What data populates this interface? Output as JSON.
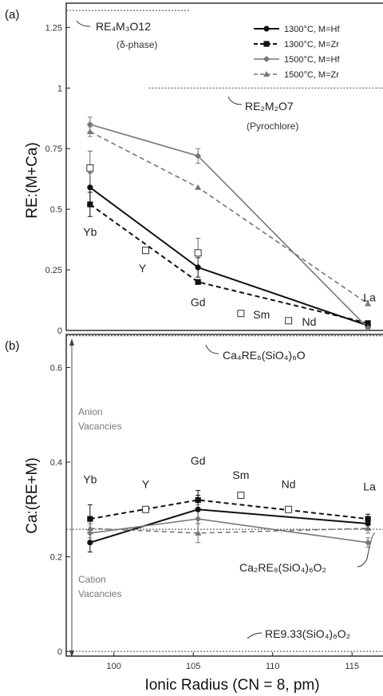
{
  "chart_data": [
    {
      "panel": "(a)",
      "type": "line",
      "ylabel": "RE:(M+Ca)",
      "xlim": [
        97,
        117
      ],
      "ylim": [
        0,
        1.35
      ],
      "yticks": [
        0,
        0.25,
        0.5,
        0.75,
        1,
        1.25
      ],
      "ytick_labels": [
        "0",
        "0.25",
        "0.5",
        "0.75",
        "1",
        "1.25"
      ],
      "series": [
        {
          "name": "1300°C, M=Hf",
          "style": "solid",
          "marker": "circle",
          "color": "#111111",
          "x": [
            98.5,
            105.3,
            116
          ],
          "y": [
            0.59,
            0.26,
            0.02
          ],
          "err": [
            0.06,
            0.04,
            0.02
          ]
        },
        {
          "name": "1300°C, M=Zr",
          "style": "dashed",
          "marker": "square",
          "color": "#111111",
          "x": [
            98.5,
            105.3,
            116
          ],
          "y": [
            0.52,
            0.2,
            0.03
          ],
          "err": [
            0.05,
            0.0,
            0.0
          ]
        },
        {
          "name": "1500°C, M=Hf",
          "style": "solid",
          "marker": "diamond",
          "color": "#777777",
          "x": [
            98.5,
            105.3,
            116
          ],
          "y": [
            0.85,
            0.72,
            0.01
          ],
          "err": [
            0.03,
            0.03,
            0.0
          ]
        },
        {
          "name": "1500°C, M=Zr",
          "style": "dashed",
          "marker": "triangle",
          "color": "#777777",
          "x": [
            98.5,
            105.3,
            116
          ],
          "y": [
            0.82,
            0.59,
            0.11
          ],
          "err": [
            0.02,
            0.0,
            0.0
          ]
        }
      ],
      "open_squares": [
        {
          "x": 98.5,
          "y": 0.67,
          "err": 0.07
        },
        {
          "x": 102,
          "y": 0.33,
          "err": 0
        },
        {
          "x": 105.3,
          "y": 0.32,
          "err": 0.06
        },
        {
          "x": 108,
          "y": 0.07,
          "err": 0
        },
        {
          "x": 111,
          "y": 0.04,
          "err": 0
        }
      ],
      "element_labels": [
        {
          "text": "Yb",
          "x": 98.5,
          "y": 0.39
        },
        {
          "text": "Y",
          "x": 101.8,
          "y": 0.24
        },
        {
          "text": "Gd",
          "x": 105.3,
          "y": 0.1
        },
        {
          "text": "Sm",
          "x": 109.3,
          "y": 0.05
        },
        {
          "text": "Nd",
          "x": 112.3,
          "y": 0.02
        },
        {
          "text": "La",
          "x": 116.1,
          "y": 0.12
        }
      ],
      "reference_lines": [
        {
          "y": 1.32,
          "x_from": 97,
          "x_to": 104.8
        },
        {
          "y": 1.0,
          "x_from": 102.2,
          "x_to": 117
        }
      ],
      "phase_label_1_formula": "RE₄M₃O12",
      "phase_label_1_name": "(δ-phase)",
      "phase_label_2_formula": "RE₂M₂O7",
      "phase_label_2_name": "(Pyrochlore)"
    },
    {
      "panel": "(b)",
      "type": "line",
      "ylabel": "Ca:(RE+M)",
      "xlabel": "Ionic Radius (CN = 8, pm)",
      "xlim": [
        97,
        117
      ],
      "ylim": [
        -0.01,
        0.67
      ],
      "xticks": [
        100,
        105,
        110,
        115
      ],
      "xtick_labels": [
        "100",
        "105",
        "110",
        "115"
      ],
      "yticks": [
        0,
        0.2,
        0.4,
        0.6
      ],
      "ytick_labels": [
        "0",
        "0.2",
        "0.4",
        "0.6"
      ],
      "series": [
        {
          "name": "1300°C, M=Hf",
          "style": "solid",
          "marker": "circle",
          "color": "#111111",
          "x": [
            98.5,
            105.3,
            116
          ],
          "y": [
            0.23,
            0.3,
            0.27
          ],
          "err": [
            0.02,
            0.03,
            0.01
          ]
        },
        {
          "name": "1300°C, M=Zr",
          "style": "dashed",
          "marker": "square",
          "color": "#111111",
          "x": [
            98.5,
            105.3,
            116
          ],
          "y": [
            0.28,
            0.32,
            0.28
          ],
          "err": [
            0.03,
            0.02,
            0.01
          ]
        },
        {
          "name": "1500°C, M=Hf",
          "style": "solid",
          "marker": "diamond",
          "color": "#777777",
          "x": [
            98.5,
            105.3,
            116
          ],
          "y": [
            0.25,
            0.28,
            0.23
          ],
          "err": [
            0.02,
            0.03,
            0.01
          ]
        },
        {
          "name": "1500°C, M=Zr",
          "style": "dashed",
          "marker": "triangle",
          "color": "#777777",
          "x": [
            98.5,
            105.3,
            116
          ],
          "y": [
            0.26,
            0.25,
            0.26
          ],
          "err": [
            0.02,
            0.02,
            0.01
          ]
        }
      ],
      "open_squares": [
        {
          "x": 102,
          "y": 0.3,
          "err": 0
        },
        {
          "x": 108,
          "y": 0.33,
          "err": 0
        },
        {
          "x": 111,
          "y": 0.3,
          "err": 0
        }
      ],
      "element_labels": [
        {
          "text": "Yb",
          "x": 98.5,
          "y": 0.355
        },
        {
          "text": "Y",
          "x": 102,
          "y": 0.345
        },
        {
          "text": "Gd",
          "x": 105.3,
          "y": 0.395
        },
        {
          "text": "Sm",
          "x": 108,
          "y": 0.365
        },
        {
          "text": "Nd",
          "x": 111,
          "y": 0.345
        },
        {
          "text": "La",
          "x": 116.1,
          "y": 0.34
        }
      ],
      "reference_lines": [
        {
          "y": 0.667,
          "x_from": 97,
          "x_to": 117
        },
        {
          "y": 0.258,
          "x_from": 97,
          "x_to": 117
        },
        {
          "y": 0.0,
          "x_from": 97,
          "x_to": 117
        }
      ],
      "phase_label_1_formula": "Ca₄RE₆(SiO₄)₆O",
      "phase_label_2_formula": "Ca₂RE₈(SiO₄)₆O₂",
      "phase_label_3_formula": "RE9.33(SiO₄)₆O₂",
      "vacancy_label_anion": [
        "Anion",
        "Vacancies"
      ],
      "vacancy_label_cation": [
        "Cation",
        "Vacancies"
      ]
    }
  ]
}
